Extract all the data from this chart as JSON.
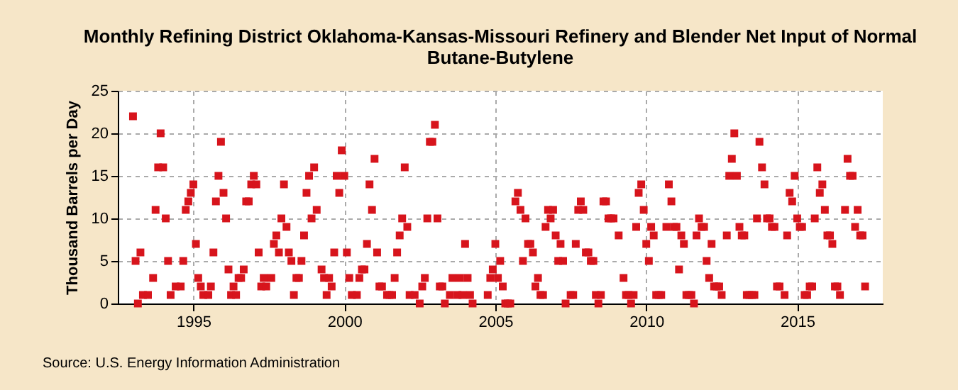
{
  "chart_data": {
    "type": "scatter",
    "title": "Monthly Refining District Oklahoma-Kansas-Missouri Refinery and Blender Net Input of Normal Butane-Butylene",
    "ylabel": "Thousand Barrels per Day",
    "annotations": [
      "Source: U.S. Energy Information Administration"
    ],
    "xlim": [
      "1992-07",
      "2017-11"
    ],
    "xticks": [
      {
        "value": "1995-01",
        "label": "1995"
      },
      {
        "value": "2000-01",
        "label": "2000"
      },
      {
        "value": "2005-01",
        "label": "2005"
      },
      {
        "value": "2010-01",
        "label": "2010"
      },
      {
        "value": "2015-01",
        "label": "2015"
      }
    ],
    "ylim": [
      0,
      25
    ],
    "yticks": [
      0,
      5,
      10,
      15,
      20,
      25
    ],
    "grid": true,
    "marker": "square",
    "legend": false,
    "series": [
      {
        "color": "#d7141c",
        "x": [
          "1993-01",
          "1993-02",
          "1993-03",
          "1993-04",
          "1993-05",
          "1993-07",
          "1993-09",
          "1993-10",
          "1993-11",
          "1993-12",
          "1994-01",
          "1994-02",
          "1994-03",
          "1994-04",
          "1994-06",
          "1994-08",
          "1994-09",
          "1994-10",
          "1994-11",
          "1994-12",
          "1995-01",
          "1995-02",
          "1995-03",
          "1995-04",
          "1995-05",
          "1995-07",
          "1995-08",
          "1995-09",
          "1995-10",
          "1995-11",
          "1995-12",
          "1996-01",
          "1996-02",
          "1996-03",
          "1996-04",
          "1996-05",
          "1996-06",
          "1996-07",
          "1996-08",
          "1996-09",
          "1996-10",
          "1996-11",
          "1996-12",
          "1997-01",
          "1997-02",
          "1997-03",
          "1997-04",
          "1997-05",
          "1997-06",
          "1997-08",
          "1997-09",
          "1997-10",
          "1997-11",
          "1997-12",
          "1998-01",
          "1998-02",
          "1998-03",
          "1998-04",
          "1998-05",
          "1998-06",
          "1998-07",
          "1998-08",
          "1998-09",
          "1998-10",
          "1998-11",
          "1998-12",
          "1999-01",
          "1999-02",
          "1999-04",
          "1999-05",
          "1999-06",
          "1999-07",
          "1999-08",
          "1999-09",
          "1999-10",
          "1999-11",
          "1999-12",
          "2000-01",
          "2000-02",
          "2000-03",
          "2000-04",
          "2000-06",
          "2000-07",
          "2000-08",
          "2000-09",
          "2000-10",
          "2000-11",
          "2000-12",
          "2001-01",
          "2001-02",
          "2001-03",
          "2001-04",
          "2001-06",
          "2001-07",
          "2001-08",
          "2001-09",
          "2001-10",
          "2001-11",
          "2001-12",
          "2002-01",
          "2002-02",
          "2002-03",
          "2002-05",
          "2002-07",
          "2002-08",
          "2002-09",
          "2002-10",
          "2002-11",
          "2002-12",
          "2003-01",
          "2003-02",
          "2003-03",
          "2003-04",
          "2003-05",
          "2003-07",
          "2003-08",
          "2003-10",
          "2003-11",
          "2003-12",
          "2004-01",
          "2004-02",
          "2004-03",
          "2004-04",
          "2004-10",
          "2004-11",
          "2004-12",
          "2005-01",
          "2005-02",
          "2005-03",
          "2005-04",
          "2005-05",
          "2005-06",
          "2005-07",
          "2005-09",
          "2005-10",
          "2005-11",
          "2005-12",
          "2006-01",
          "2006-02",
          "2006-03",
          "2006-04",
          "2006-05",
          "2006-06",
          "2006-07",
          "2006-08",
          "2006-09",
          "2006-10",
          "2006-11",
          "2006-12",
          "2007-01",
          "2007-02",
          "2007-03",
          "2007-04",
          "2007-05",
          "2007-07",
          "2007-08",
          "2007-09",
          "2007-10",
          "2007-11",
          "2007-12",
          "2008-01",
          "2008-02",
          "2008-03",
          "2008-04",
          "2008-05",
          "2008-06",
          "2008-07",
          "2008-08",
          "2008-09",
          "2008-10",
          "2008-11",
          "2008-12",
          "2009-02",
          "2009-04",
          "2009-05",
          "2009-06",
          "2009-07",
          "2009-08",
          "2009-09",
          "2009-10",
          "2009-11",
          "2009-12",
          "2010-01",
          "2010-02",
          "2010-03",
          "2010-04",
          "2010-05",
          "2010-06",
          "2010-07",
          "2010-09",
          "2010-10",
          "2010-11",
          "2010-12",
          "2011-01",
          "2011-02",
          "2011-03",
          "2011-04",
          "2011-05",
          "2011-06",
          "2011-07",
          "2011-08",
          "2011-09",
          "2011-10",
          "2011-11",
          "2011-12",
          "2012-01",
          "2012-02",
          "2012-03",
          "2012-04",
          "2012-05",
          "2012-06",
          "2012-07",
          "2012-09",
          "2012-10",
          "2012-11",
          "2012-12",
          "2013-01",
          "2013-02",
          "2013-03",
          "2013-04",
          "2013-05",
          "2013-06",
          "2013-07",
          "2013-08",
          "2013-09",
          "2013-10",
          "2013-11",
          "2013-12",
          "2014-01",
          "2014-02",
          "2014-03",
          "2014-04",
          "2014-05",
          "2014-06",
          "2014-08",
          "2014-09",
          "2014-10",
          "2014-11",
          "2014-12",
          "2015-01",
          "2015-02",
          "2015-03",
          "2015-04",
          "2015-05",
          "2015-06",
          "2015-07",
          "2015-08",
          "2015-09",
          "2015-10",
          "2015-11",
          "2015-12",
          "2016-01",
          "2016-02",
          "2016-03",
          "2016-04",
          "2016-05",
          "2016-06",
          "2016-08",
          "2016-09",
          "2016-10",
          "2016-11",
          "2016-12",
          "2017-01",
          "2017-02",
          "2017-03",
          "2017-04"
        ],
        "values": [
          22,
          5,
          0,
          6,
          1,
          1,
          3,
          11,
          16,
          20,
          16,
          10,
          5,
          1,
          2,
          2,
          5,
          11,
          12,
          13,
          14,
          7,
          3,
          2,
          1,
          1,
          2,
          6,
          12,
          15,
          19,
          13,
          10,
          4,
          1,
          2,
          1,
          3,
          3,
          4,
          12,
          12,
          14,
          15,
          14,
          6,
          2,
          3,
          2,
          3,
          7,
          8,
          6,
          10,
          14,
          9,
          6,
          5,
          1,
          3,
          3,
          5,
          8,
          13,
          15,
          10,
          16,
          11,
          4,
          3,
          1,
          3,
          2,
          6,
          15,
          13,
          18,
          15,
          6,
          3,
          1,
          1,
          3,
          4,
          4,
          7,
          14,
          11,
          17,
          6,
          2,
          2,
          1,
          1,
          1,
          3,
          6,
          8,
          10,
          16,
          9,
          1,
          1,
          0,
          2,
          3,
          10,
          19,
          19,
          21,
          10,
          2,
          2,
          0,
          1,
          3,
          1,
          3,
          1,
          7,
          3,
          1,
          0,
          1,
          3,
          4,
          7,
          3,
          5,
          2,
          0,
          0,
          0,
          12,
          13,
          11,
          5,
          10,
          7,
          7,
          6,
          2,
          3,
          1,
          1,
          9,
          11,
          10,
          11,
          8,
          5,
          7,
          5,
          0,
          1,
          1,
          7,
          11,
          12,
          11,
          6,
          6,
          5,
          5,
          1,
          0,
          1,
          12,
          12,
          10,
          10,
          10,
          8,
          3,
          1,
          1,
          0,
          1,
          9,
          13,
          14,
          11,
          7,
          5,
          9,
          8,
          1,
          1,
          1,
          9,
          14,
          12,
          9,
          9,
          4,
          8,
          7,
          1,
          1,
          1,
          0,
          8,
          10,
          9,
          9,
          5,
          3,
          7,
          2,
          2,
          2,
          1,
          8,
          15,
          17,
          20,
          15,
          9,
          8,
          8,
          1,
          1,
          1,
          1,
          10,
          19,
          16,
          14,
          10,
          10,
          9,
          9,
          2,
          2,
          1,
          8,
          13,
          12,
          15,
          10,
          9,
          9,
          1,
          1,
          2,
          2,
          10,
          16,
          13,
          14,
          11,
          8,
          8,
          7,
          2,
          2,
          1,
          11,
          17,
          15,
          15,
          9,
          11,
          8,
          8,
          2
        ]
      }
    ]
  }
}
